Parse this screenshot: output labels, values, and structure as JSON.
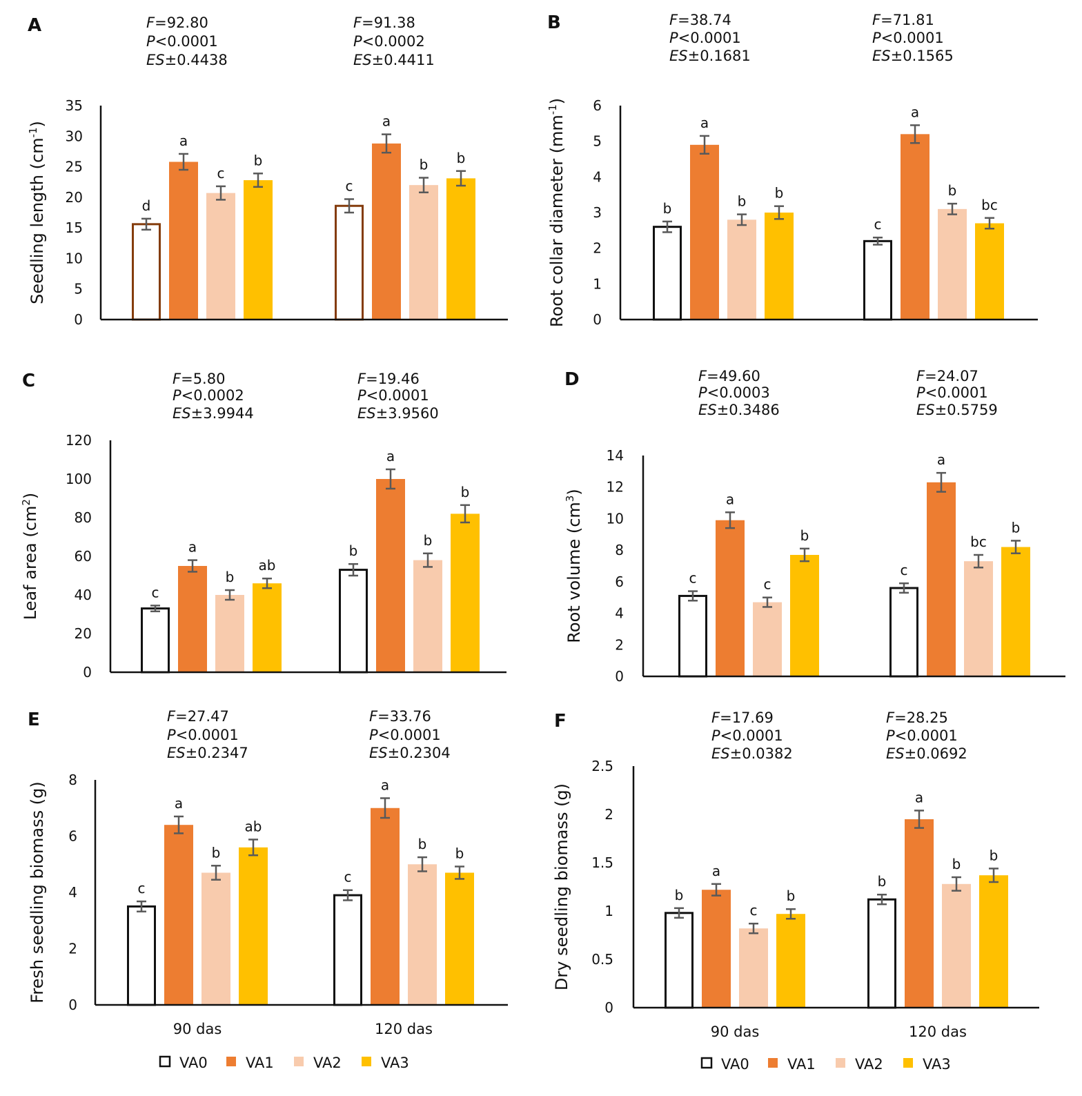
{
  "categories": [
    "90 das",
    "120 das"
  ],
  "legend": [
    {
      "name": "VA0",
      "color": "#ffffff",
      "stroke": "#111111"
    },
    {
      "name": "VA1",
      "color": "#ed7d31",
      "stroke": "none"
    },
    {
      "name": "VA2",
      "color": "#f8cbad",
      "stroke": "none"
    },
    {
      "name": "VA3",
      "color": "#ffc000",
      "stroke": "none"
    }
  ],
  "chart_data": [
    {
      "panel": "A",
      "type": "bar",
      "ylabel": "Seedling length (cm-1)",
      "ylabel_main": "Seedling length (cm",
      "ylabel_sup": "-1",
      "ylabel_tail": ")",
      "ylim": [
        0,
        35
      ],
      "yticks": [
        "0",
        "5",
        "10",
        "15",
        "20",
        "25",
        "30",
        "35"
      ],
      "categories": [
        "90 das",
        "120 das"
      ],
      "va0_stroke": "#843c0c",
      "series": [
        {
          "name": "VA0",
          "values": [
            15.6,
            18.6
          ],
          "errors": [
            0.9,
            1.1
          ],
          "letters": [
            "d",
            "c"
          ]
        },
        {
          "name": "VA1",
          "values": [
            25.8,
            28.8
          ],
          "errors": [
            1.3,
            1.5
          ],
          "letters": [
            "a",
            "a"
          ]
        },
        {
          "name": "VA2",
          "values": [
            20.7,
            22.0
          ],
          "errors": [
            1.1,
            1.2
          ],
          "letters": [
            "c",
            "b"
          ]
        },
        {
          "name": "VA3",
          "values": [
            22.8,
            23.1
          ],
          "errors": [
            1.1,
            1.2
          ],
          "letters": [
            "b",
            "b"
          ]
        }
      ],
      "stats": [
        {
          "F": "=92.80",
          "P": "<0.0001",
          "ES": "±0.4438"
        },
        {
          "F": "=91.38",
          "P": "<0.0002",
          "ES": "±0.4411"
        }
      ]
    },
    {
      "panel": "B",
      "type": "bar",
      "ylabel": "Root collar diameter (mm-1)",
      "ylabel_main": "Root collar diameter (mm",
      "ylabel_sup": "-1",
      "ylabel_tail": ")",
      "ylim": [
        0,
        6
      ],
      "yticks": [
        "0",
        "1",
        "2",
        "3",
        "4",
        "5",
        "6"
      ],
      "categories": [
        "90 das",
        "120 das"
      ],
      "va0_stroke": "#111111",
      "series": [
        {
          "name": "VA0",
          "values": [
            2.6,
            2.2
          ],
          "errors": [
            0.15,
            0.1
          ],
          "letters": [
            "b",
            "c"
          ]
        },
        {
          "name": "VA1",
          "values": [
            4.9,
            5.2
          ],
          "errors": [
            0.25,
            0.25
          ],
          "letters": [
            "a",
            "a"
          ]
        },
        {
          "name": "VA2",
          "values": [
            2.8,
            3.1
          ],
          "errors": [
            0.15,
            0.15
          ],
          "letters": [
            "b",
            "b"
          ]
        },
        {
          "name": "VA3",
          "values": [
            3.0,
            2.7
          ],
          "errors": [
            0.18,
            0.15
          ],
          "letters": [
            "b",
            "bc"
          ]
        }
      ],
      "stats": [
        {
          "F": "=38.74",
          "P": "<0.0001",
          "ES": "±0.1681"
        },
        {
          "F": "=71.81",
          "P": "<0.0001",
          "ES": "±0.1565"
        }
      ]
    },
    {
      "panel": "C",
      "type": "bar",
      "ylabel": "Leaf area (cm2)",
      "ylabel_main": "Leaf area (cm",
      "ylabel_sup": "2",
      "ylabel_tail": ")",
      "ylim": [
        0,
        120
      ],
      "yticks": [
        "0",
        "20",
        "40",
        "60",
        "80",
        "100",
        "120"
      ],
      "categories": [
        "90 das",
        "120 das"
      ],
      "va0_stroke": "#111111",
      "series": [
        {
          "name": "VA0",
          "values": [
            33,
            53
          ],
          "errors": [
            1.5,
            3
          ],
          "letters": [
            "c",
            "b"
          ]
        },
        {
          "name": "VA1",
          "values": [
            55,
            100
          ],
          "errors": [
            3,
            5
          ],
          "letters": [
            "a",
            "a"
          ]
        },
        {
          "name": "VA2",
          "values": [
            40,
            58
          ],
          "errors": [
            2.5,
            3.5
          ],
          "letters": [
            "b",
            "b"
          ]
        },
        {
          "name": "VA3",
          "values": [
            46,
            82
          ],
          "errors": [
            2.5,
            4.5
          ],
          "letters": [
            "ab",
            "b"
          ]
        }
      ],
      "stats": [
        {
          "F": "=5.80",
          "P": "<0.0002",
          "ES": "±3.9944"
        },
        {
          "F": "=19.46",
          "P": "<0.0001",
          "ES": "±3.9560"
        }
      ]
    },
    {
      "panel": "D",
      "type": "bar",
      "ylabel": "Root volume (cm3)",
      "ylabel_main": "Root volume (cm",
      "ylabel_sup": "3",
      "ylabel_tail": ")",
      "ylim": [
        0,
        14
      ],
      "yticks": [
        "0",
        "2",
        "4",
        "6",
        "8",
        "10",
        "12",
        "14"
      ],
      "categories": [
        "90 das",
        "120 das"
      ],
      "va0_stroke": "#111111",
      "series": [
        {
          "name": "VA0",
          "values": [
            5.1,
            5.6
          ],
          "errors": [
            0.3,
            0.3
          ],
          "letters": [
            "c",
            "c"
          ]
        },
        {
          "name": "VA1",
          "values": [
            9.9,
            12.3
          ],
          "errors": [
            0.5,
            0.6
          ],
          "letters": [
            "a",
            "a"
          ]
        },
        {
          "name": "VA2",
          "values": [
            4.7,
            7.3
          ],
          "errors": [
            0.3,
            0.4
          ],
          "letters": [
            "c",
            "bc"
          ]
        },
        {
          "name": "VA3",
          "values": [
            7.7,
            8.2
          ],
          "errors": [
            0.4,
            0.4
          ],
          "letters": [
            "b",
            "b"
          ]
        }
      ],
      "stats": [
        {
          "F": "=49.60",
          "P": "<0.0003",
          "ES": "±0.3486"
        },
        {
          "F": "=24.07",
          "P": "<0.0001",
          "ES": "±0.5759"
        }
      ]
    },
    {
      "panel": "E",
      "type": "bar",
      "ylabel": "Fresh seedling biomass (g)",
      "ylabel_main": "Fresh seedling biomass (g)",
      "ylabel_sup": "",
      "ylabel_tail": "",
      "ylim": [
        0,
        8
      ],
      "yticks": [
        "0",
        "2",
        "4",
        "6",
        "8"
      ],
      "categories": [
        "90 das",
        "120 das"
      ],
      "va0_stroke": "#111111",
      "series": [
        {
          "name": "VA0",
          "values": [
            3.5,
            3.9
          ],
          "errors": [
            0.18,
            0.18
          ],
          "letters": [
            "c",
            "c"
          ]
        },
        {
          "name": "VA1",
          "values": [
            6.4,
            7.0
          ],
          "errors": [
            0.3,
            0.35
          ],
          "letters": [
            "a",
            "a"
          ]
        },
        {
          "name": "VA2",
          "values": [
            4.7,
            5.0
          ],
          "errors": [
            0.25,
            0.25
          ],
          "letters": [
            "b",
            "b"
          ]
        },
        {
          "name": "VA3",
          "values": [
            5.6,
            4.7
          ],
          "errors": [
            0.28,
            0.22
          ],
          "letters": [
            "ab",
            "b"
          ]
        }
      ],
      "stats": [
        {
          "F": "=27.47",
          "P": "<0.0001",
          "ES": "±0.2347"
        },
        {
          "F": "=33.76",
          "P": "<0.0001",
          "ES": "±0.2304"
        }
      ]
    },
    {
      "panel": "F",
      "type": "bar",
      "ylabel": "Dry seedling biomass (g)",
      "ylabel_main": "Dry seedling biomass (g)",
      "ylabel_sup": "",
      "ylabel_tail": "",
      "ylim": [
        0,
        2.5
      ],
      "yticks": [
        "0",
        "0.5",
        "1",
        "1.5",
        "2",
        "2.5"
      ],
      "categories": [
        "90 das",
        "120 das"
      ],
      "va0_stroke": "#111111",
      "series": [
        {
          "name": "VA0",
          "values": [
            0.98,
            1.12
          ],
          "errors": [
            0.05,
            0.05
          ],
          "letters": [
            "b",
            "b"
          ]
        },
        {
          "name": "VA1",
          "values": [
            1.22,
            1.95
          ],
          "errors": [
            0.06,
            0.09
          ],
          "letters": [
            "a",
            "a"
          ]
        },
        {
          "name": "VA2",
          "values": [
            0.82,
            1.28
          ],
          "errors": [
            0.05,
            0.07
          ],
          "letters": [
            "c",
            "b"
          ]
        },
        {
          "name": "VA3",
          "values": [
            0.97,
            1.37
          ],
          "errors": [
            0.05,
            0.07
          ],
          "letters": [
            "b",
            "b"
          ]
        }
      ],
      "stats": [
        {
          "F": "=17.69",
          "P": "<0.0001",
          "ES": "±0.0382"
        },
        {
          "F": "=28.25",
          "P": "<0.0001",
          "ES": "±0.0692"
        }
      ]
    }
  ]
}
